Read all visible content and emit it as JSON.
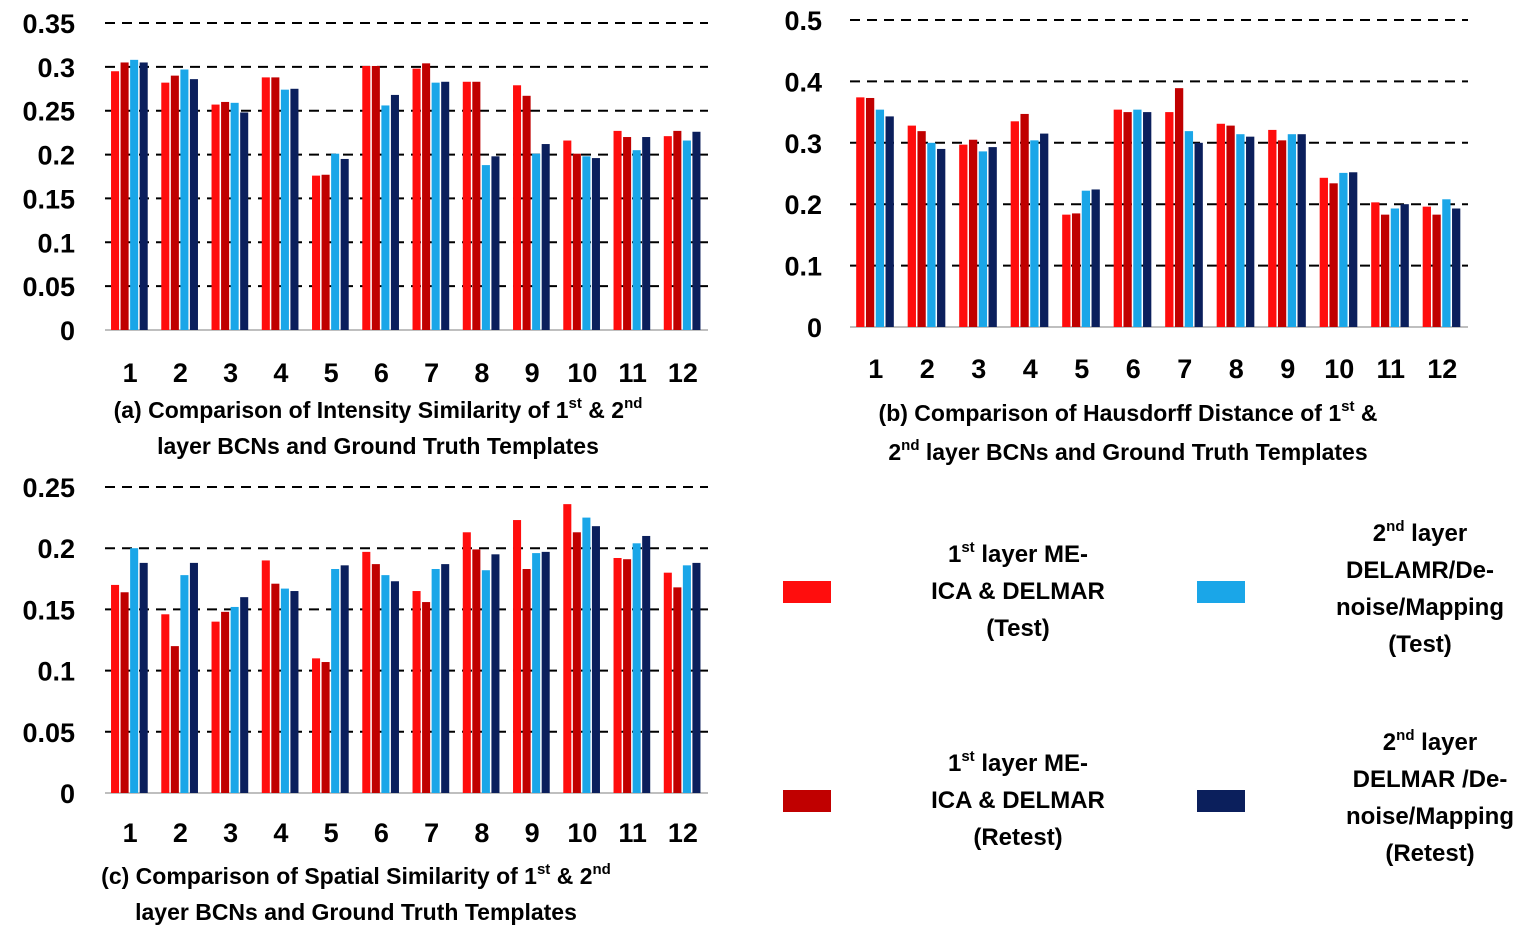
{
  "colors": {
    "l1_test": "#ff0d0d",
    "l1_retest": "#c00000",
    "l2_test": "#1aa6e8",
    "l2_retest": "#0b1f5c"
  },
  "legend": [
    {
      "color_key": "l1_test",
      "lines": [
        [
          "1",
          "st",
          " layer ME-"
        ],
        [
          "ICA & DELMAR"
        ],
        [
          "(Test)"
        ]
      ]
    },
    {
      "color_key": "l2_test",
      "lines": [
        [
          "2",
          "nd",
          " layer"
        ],
        [
          "DELAMR/De-"
        ],
        [
          "noise/Mapping"
        ],
        [
          "(Test)"
        ]
      ]
    },
    {
      "color_key": "l1_retest",
      "lines": [
        [
          "1",
          "st",
          " layer ME-"
        ],
        [
          "ICA & DELMAR"
        ],
        [
          "(Retest)"
        ]
      ]
    },
    {
      "color_key": "l2_retest",
      "lines": [
        [
          "2",
          "nd",
          " layer"
        ],
        [
          "DELMAR /De-"
        ],
        [
          "noise/Mapping"
        ],
        [
          "(Retest)"
        ]
      ]
    }
  ],
  "chart_data": [
    {
      "id": "a",
      "type": "bar",
      "caption": [
        [
          "(a) Comparison of Intensity Similarity of 1",
          "st",
          " & 2",
          "nd"
        ],
        [
          "layer BCNs and Ground Truth Templates"
        ]
      ],
      "categories": [
        "1",
        "2",
        "3",
        "4",
        "5",
        "6",
        "7",
        "8",
        "9",
        "10",
        "11",
        "12"
      ],
      "ylim": [
        0,
        0.35
      ],
      "yticks": [
        "0",
        "0.05",
        "0.1",
        "0.15",
        "0.2",
        "0.25",
        "0.3",
        "0.35"
      ],
      "grid": "dashed",
      "series": [
        {
          "color_key": "l1_test",
          "values": [
            0.295,
            0.282,
            0.257,
            0.288,
            0.176,
            0.301,
            0.298,
            0.283,
            0.279,
            0.216,
            0.227,
            0.221
          ]
        },
        {
          "color_key": "l1_retest",
          "values": [
            0.305,
            0.29,
            0.26,
            0.288,
            0.177,
            0.301,
            0.304,
            0.283,
            0.267,
            0.201,
            0.22,
            0.227
          ]
        },
        {
          "color_key": "l2_test",
          "values": [
            0.308,
            0.297,
            0.259,
            0.274,
            0.201,
            0.256,
            0.282,
            0.188,
            0.201,
            0.198,
            0.205,
            0.216
          ]
        },
        {
          "color_key": "l2_retest",
          "values": [
            0.305,
            0.286,
            0.248,
            0.275,
            0.195,
            0.268,
            0.283,
            0.198,
            0.212,
            0.196,
            0.22,
            0.226
          ]
        }
      ]
    },
    {
      "id": "b",
      "type": "bar",
      "caption": [
        [
          "(b) Comparison of Hausdorff Distance of 1",
          "st",
          " &"
        ],
        [
          "2",
          "nd",
          " layer BCNs and Ground Truth Templates"
        ]
      ],
      "categories": [
        "1",
        "2",
        "3",
        "4",
        "5",
        "6",
        "7",
        "8",
        "9",
        "10",
        "11",
        "12"
      ],
      "ylim": [
        0,
        0.5
      ],
      "yticks": [
        "0",
        "0.1",
        "0.2",
        "0.3",
        "0.4",
        "0.5"
      ],
      "grid": "dashed",
      "series": [
        {
          "color_key": "l1_test",
          "values": [
            0.374,
            0.328,
            0.297,
            0.335,
            0.183,
            0.354,
            0.35,
            0.331,
            0.321,
            0.243,
            0.203,
            0.196
          ]
        },
        {
          "color_key": "l1_retest",
          "values": [
            0.373,
            0.319,
            0.305,
            0.347,
            0.185,
            0.35,
            0.389,
            0.328,
            0.304,
            0.234,
            0.183,
            0.183
          ]
        },
        {
          "color_key": "l2_test",
          "values": [
            0.354,
            0.3,
            0.286,
            0.304,
            0.222,
            0.354,
            0.319,
            0.314,
            0.314,
            0.251,
            0.193,
            0.208
          ]
        },
        {
          "color_key": "l2_retest",
          "values": [
            0.343,
            0.29,
            0.293,
            0.315,
            0.224,
            0.35,
            0.3,
            0.31,
            0.314,
            0.252,
            0.2,
            0.193
          ]
        }
      ]
    },
    {
      "id": "c",
      "type": "bar",
      "caption": [
        [
          "(c) Comparison of Spatial Similarity of 1",
          "st",
          " & 2",
          "nd"
        ],
        [
          "layer BCNs and Ground Truth Templates"
        ]
      ],
      "categories": [
        "1",
        "2",
        "3",
        "4",
        "5",
        "6",
        "7",
        "8",
        "9",
        "10",
        "11",
        "12"
      ],
      "ylim": [
        0,
        0.25
      ],
      "yticks": [
        "0",
        "0.05",
        "0.1",
        "0.15",
        "0.2",
        "0.25"
      ],
      "grid": "dashed",
      "series": [
        {
          "color_key": "l1_test",
          "values": [
            0.17,
            0.146,
            0.14,
            0.19,
            0.11,
            0.197,
            0.165,
            0.213,
            0.223,
            0.236,
            0.192,
            0.18
          ]
        },
        {
          "color_key": "l1_retest",
          "values": [
            0.164,
            0.12,
            0.148,
            0.171,
            0.107,
            0.187,
            0.156,
            0.199,
            0.183,
            0.213,
            0.191,
            0.168
          ]
        },
        {
          "color_key": "l2_test",
          "values": [
            0.2,
            0.178,
            0.152,
            0.167,
            0.183,
            0.178,
            0.183,
            0.182,
            0.196,
            0.225,
            0.204,
            0.186
          ]
        },
        {
          "color_key": "l2_retest",
          "values": [
            0.188,
            0.188,
            0.16,
            0.165,
            0.186,
            0.173,
            0.187,
            0.195,
            0.197,
            0.218,
            0.21,
            0.188
          ]
        }
      ]
    }
  ]
}
